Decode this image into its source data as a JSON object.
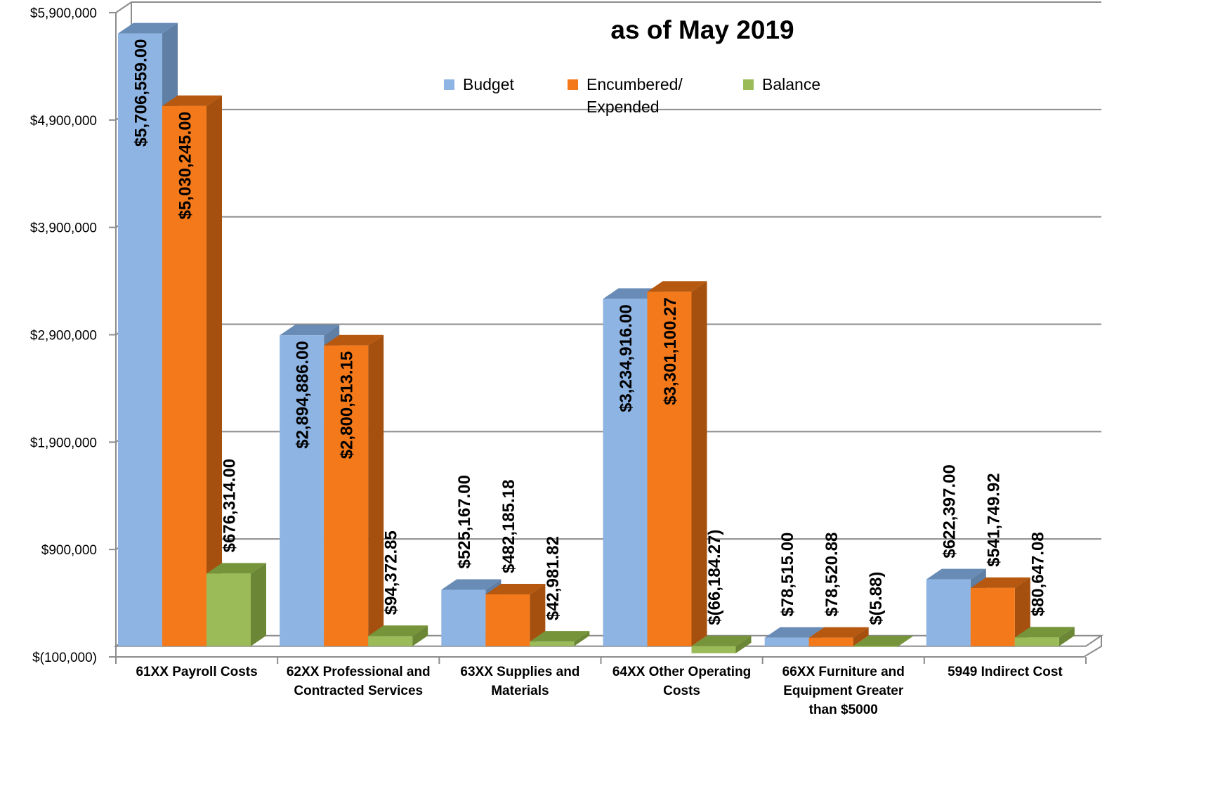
{
  "chart_data": {
    "type": "bar",
    "title_lines": [
      "as of May 2019"
    ],
    "xlabel": "",
    "ylabel": "",
    "ylim": [
      -100000,
      5900000
    ],
    "y_tick_step": 1000000,
    "grid": true,
    "legend_position": "top",
    "three_d": true,
    "categories": [
      [
        "61XX Payroll Costs"
      ],
      [
        "62XX Professional and",
        "Contracted Services"
      ],
      [
        "63XX Supplies and",
        "Materials"
      ],
      [
        "64XX Other Operating",
        "Costs"
      ],
      [
        "66XX Furniture and",
        "Equipment Greater",
        "than $5000"
      ],
      [
        "5949 Indirect Cost"
      ]
    ],
    "series": [
      {
        "name": "Budget",
        "color": "#8EB4E3",
        "side_color": "#5F7FA5",
        "values": [
          5706559.0,
          2894886.0,
          525167.0,
          3234916.0,
          78515.0,
          622397.0
        ],
        "labels": [
          "$5,706,559.00",
          "$2,894,886.00",
          "$525,167.00",
          "$3,234,916.00",
          "$78,515.00",
          "$622,397.00"
        ]
      },
      {
        "name_lines": [
          "Encumbered/",
          "Expended"
        ],
        "color": "#F4791A",
        "side_color": "#A5500E",
        "values": [
          5030245.0,
          2800513.15,
          482185.18,
          3301100.27,
          78520.88,
          541749.92
        ],
        "labels": [
          "$5,030,245.00",
          "$2,800,513.15",
          "$482,185.18",
          "$3,301,100.27",
          "$78,520.88",
          "$541,749.92"
        ]
      },
      {
        "name": "Balance",
        "color": "#9BBB59",
        "side_color": "#6B8735",
        "values": [
          676314.0,
          94372.85,
          42981.82,
          -66184.27,
          -5.88,
          80647.08
        ],
        "labels": [
          "$676,314.00",
          "$94,372.85",
          "$42,981.82",
          "$(66,184.27)",
          "$(5.88)",
          "$80,647.08"
        ]
      }
    ],
    "y_tick_labels": [
      "$(100,000)",
      "$900,000",
      "$1,900,000",
      "$2,900,000",
      "$3,900,000",
      "$4,900,000",
      "$5,900,000"
    ]
  }
}
